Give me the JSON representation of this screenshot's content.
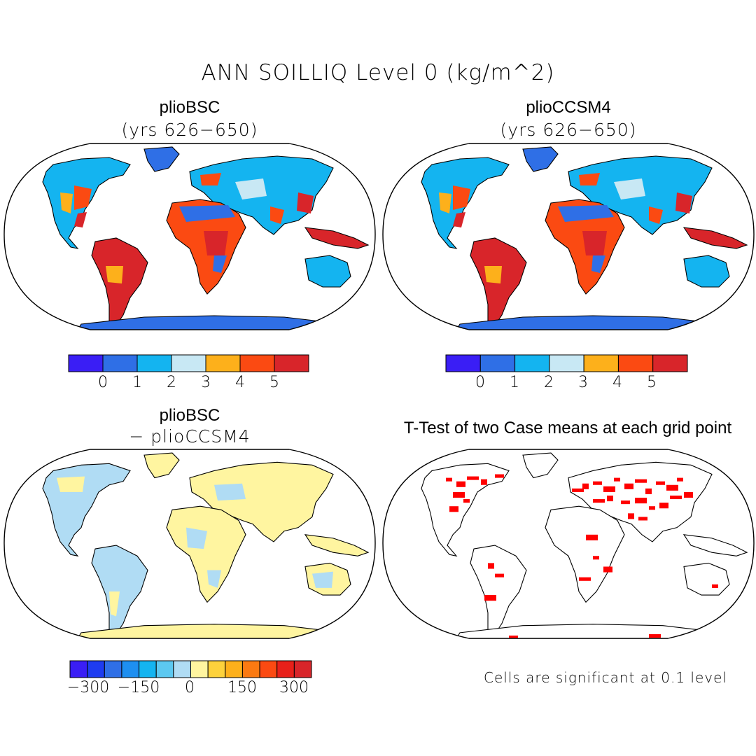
{
  "title": "ANN SOILLIQ Level 0 (kg/m^2)",
  "panels": [
    {
      "id": "plioBSC",
      "title": "plioBSC",
      "subtitle": "(yrs 626−650)"
    },
    {
      "id": "plioCCSM4",
      "title": "plioCCSM4",
      "subtitle": "(yrs 626−650)"
    },
    {
      "id": "diff",
      "title": "plioBSC",
      "subtitle": "− plioCCSM4"
    },
    {
      "id": "ttest",
      "title": "T-Test of two Case means at each grid point",
      "subtitle": ""
    }
  ],
  "colorbars": {
    "absolute": {
      "colors": [
        "#3a1ef5",
        "#2f6fe6",
        "#14b4f0",
        "#c8e8f4",
        "#fdb01b",
        "#fb4a12",
        "#d8252a"
      ],
      "ticks": [
        "0",
        "1",
        "2",
        "3",
        "4",
        "5"
      ]
    },
    "difference": {
      "colors": [
        "#3a1ef5",
        "#1e3cf0",
        "#2f6fe6",
        "#1e8ff0",
        "#14b4f0",
        "#5cc8f0",
        "#b0dcf4",
        "#fff5a0",
        "#fdd23c",
        "#fdb01b",
        "#fb7a12",
        "#fb4a12",
        "#e8201a",
        "#d8252a"
      ],
      "ticks": [
        "−300",
        "−150",
        "0",
        "150",
        "300"
      ]
    }
  },
  "significance_note": "Cells are significant at 0.1 level",
  "colors": {
    "ocean": "#ffffff",
    "ice": "#2f6fe6",
    "significant": "#ff0000",
    "diff_negative": "#b0dcf4",
    "diff_positive": "#fff5a0"
  }
}
